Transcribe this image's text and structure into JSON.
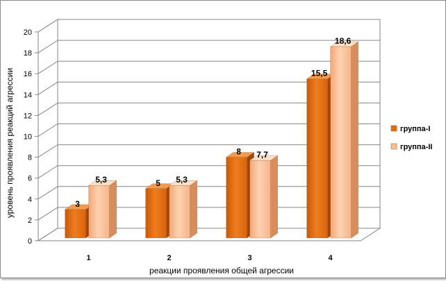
{
  "chart_data": {
    "type": "bar",
    "categories": [
      "1",
      "2",
      "3",
      "4"
    ],
    "series": [
      {
        "name": "группа-I",
        "values": [
          3,
          5,
          8,
          15.5
        ],
        "labels": [
          "3",
          "5",
          "8",
          "15,5"
        ],
        "color": "#e46c0a"
      },
      {
        "name": "группа-II",
        "values": [
          5.3,
          5.3,
          7.7,
          18.6
        ],
        "labels": [
          "5,3",
          "5,3",
          "7,7",
          "18,6"
        ],
        "color": "#fbbf8f"
      }
    ],
    "title": "",
    "xlabel": "реакции проявления общей агрессии",
    "ylabel": "уровень проявления реакций агрессии",
    "ylim": [
      0,
      20
    ],
    "yticks": [
      0,
      2,
      4,
      6,
      8,
      10,
      12,
      14,
      16,
      18,
      20
    ],
    "grid": true,
    "legend": "right"
  }
}
